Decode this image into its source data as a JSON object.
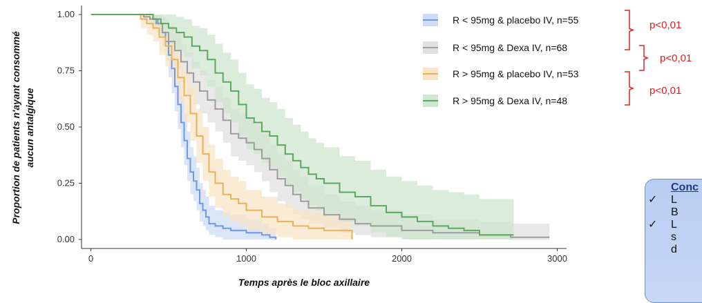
{
  "chart_data": {
    "type": "line",
    "title": "",
    "xlabel": "Temps après le bloc axillaire",
    "ylabel": [
      "Proportion de patients n'ayant consommé",
      "aucun antalgique"
    ],
    "xlim": [
      -60,
      3060
    ],
    "ylim": [
      -0.04,
      1.04
    ],
    "x_ticks": [
      0,
      1000,
      2000,
      3000
    ],
    "x_tick_labels": [
      "0",
      "1000",
      "2000",
      "3000"
    ],
    "y_ticks": [
      0,
      0.25,
      0.5,
      0.75,
      1.0
    ],
    "y_tick_labels": [
      "0.00",
      "0.25",
      "0.50",
      "0.75",
      "1.00"
    ],
    "grid": false,
    "legend_position": "top-right",
    "series": [
      {
        "name": "R < 95mg & placebo IV, n=55",
        "color": "#6f98e6",
        "band_color": "#cddcf6",
        "x": [
          0,
          340,
          400,
          430,
          460,
          480,
          500,
          520,
          540,
          560,
          580,
          600,
          620,
          640,
          660,
          680,
          700,
          720,
          740,
          760,
          800,
          850,
          900,
          1000,
          1100,
          1150,
          1190
        ],
        "y": [
          1.0,
          1.0,
          0.98,
          0.96,
          0.92,
          0.88,
          0.82,
          0.76,
          0.68,
          0.6,
          0.52,
          0.44,
          0.36,
          0.3,
          0.26,
          0.22,
          0.16,
          0.13,
          0.1,
          0.07,
          0.06,
          0.05,
          0.04,
          0.03,
          0.02,
          0.01,
          0.0
        ],
        "upper": [
          1.0,
          1.0,
          1.0,
          1.0,
          0.99,
          0.96,
          0.92,
          0.87,
          0.8,
          0.72,
          0.64,
          0.56,
          0.48,
          0.41,
          0.37,
          0.32,
          0.25,
          0.22,
          0.19,
          0.15,
          0.13,
          0.12,
          0.11,
          0.09,
          0.07,
          0.05,
          0.03
        ],
        "lower": [
          1.0,
          1.0,
          0.94,
          0.91,
          0.86,
          0.8,
          0.72,
          0.65,
          0.57,
          0.49,
          0.41,
          0.33,
          0.26,
          0.2,
          0.17,
          0.13,
          0.08,
          0.06,
          0.04,
          0.02,
          0.01,
          0.0,
          0.0,
          0.0,
          0.0,
          0.0,
          0.0
        ]
      },
      {
        "name": "R < 95mg & Dexa IV, n=68",
        "color": "#9c9c9c",
        "band_color": "#e0e0e0",
        "x": [
          0,
          300,
          340,
          380,
          420,
          460,
          500,
          540,
          580,
          620,
          660,
          700,
          750,
          800,
          850,
          900,
          950,
          1000,
          1050,
          1100,
          1150,
          1200,
          1250,
          1300,
          1350,
          1400,
          1500,
          1600,
          1700,
          1800,
          2000,
          2200,
          2500,
          2700,
          2950
        ],
        "y": [
          1.0,
          1.0,
          0.99,
          0.98,
          0.96,
          0.92,
          0.88,
          0.84,
          0.79,
          0.74,
          0.7,
          0.66,
          0.62,
          0.58,
          0.53,
          0.47,
          0.45,
          0.43,
          0.4,
          0.36,
          0.31,
          0.27,
          0.24,
          0.2,
          0.17,
          0.14,
          0.11,
          0.09,
          0.07,
          0.06,
          0.04,
          0.03,
          0.02,
          0.01,
          0.01
        ],
        "upper": [
          1.0,
          1.0,
          1.0,
          1.0,
          1.0,
          0.98,
          0.95,
          0.92,
          0.87,
          0.83,
          0.79,
          0.75,
          0.71,
          0.68,
          0.63,
          0.58,
          0.56,
          0.54,
          0.51,
          0.47,
          0.42,
          0.38,
          0.35,
          0.31,
          0.28,
          0.24,
          0.2,
          0.17,
          0.15,
          0.13,
          0.11,
          0.09,
          0.08,
          0.07,
          0.07
        ],
        "lower": [
          1.0,
          1.0,
          0.97,
          0.95,
          0.92,
          0.86,
          0.81,
          0.76,
          0.7,
          0.64,
          0.6,
          0.56,
          0.52,
          0.48,
          0.43,
          0.37,
          0.35,
          0.33,
          0.3,
          0.26,
          0.21,
          0.17,
          0.14,
          0.11,
          0.09,
          0.07,
          0.05,
          0.03,
          0.02,
          0.01,
          0.0,
          0.0,
          0.0,
          0.0,
          0.0
        ]
      },
      {
        "name": "R > 95mg & placebo IV, n=53",
        "color": "#e8b25b",
        "band_color": "#f7e4c6",
        "x": [
          0,
          280,
          320,
          360,
          400,
          440,
          480,
          520,
          560,
          600,
          640,
          680,
          720,
          760,
          800,
          850,
          900,
          950,
          1000,
          1100,
          1200,
          1300,
          1400,
          1500,
          1600,
          1680
        ],
        "y": [
          1.0,
          1.0,
          0.98,
          0.96,
          0.94,
          0.9,
          0.86,
          0.8,
          0.72,
          0.64,
          0.56,
          0.46,
          0.38,
          0.3,
          0.25,
          0.2,
          0.18,
          0.16,
          0.13,
          0.1,
          0.08,
          0.06,
          0.05,
          0.04,
          0.04,
          0.0
        ],
        "upper": [
          1.0,
          1.0,
          1.0,
          1.0,
          1.0,
          0.97,
          0.94,
          0.89,
          0.82,
          0.75,
          0.68,
          0.58,
          0.5,
          0.42,
          0.36,
          0.31,
          0.28,
          0.26,
          0.22,
          0.19,
          0.16,
          0.13,
          0.12,
          0.11,
          0.1,
          0.06
        ],
        "lower": [
          1.0,
          1.0,
          0.94,
          0.91,
          0.88,
          0.82,
          0.77,
          0.7,
          0.61,
          0.52,
          0.44,
          0.34,
          0.26,
          0.19,
          0.14,
          0.1,
          0.08,
          0.06,
          0.04,
          0.02,
          0.01,
          0.0,
          0.0,
          0.0,
          0.0,
          0.0
        ]
      },
      {
        "name": "R > 95mg & Dexa IV, n=48",
        "color": "#5aa85e",
        "band_color": "#cfe6cf",
        "x": [
          0,
          350,
          400,
          450,
          500,
          550,
          600,
          650,
          700,
          750,
          800,
          850,
          900,
          950,
          1000,
          1050,
          1100,
          1150,
          1200,
          1250,
          1300,
          1350,
          1400,
          1450,
          1500,
          1600,
          1700,
          1800,
          1900,
          2000,
          2100,
          2200,
          2300,
          2400,
          2500,
          2720
        ],
        "y": [
          1.0,
          1.0,
          0.98,
          0.96,
          0.94,
          0.92,
          0.9,
          0.86,
          0.84,
          0.8,
          0.74,
          0.7,
          0.66,
          0.6,
          0.54,
          0.52,
          0.48,
          0.46,
          0.42,
          0.38,
          0.35,
          0.32,
          0.29,
          0.27,
          0.25,
          0.21,
          0.19,
          0.15,
          0.12,
          0.1,
          0.08,
          0.06,
          0.05,
          0.04,
          0.02,
          0.02
        ],
        "upper": [
          1.0,
          1.0,
          1.0,
          1.0,
          1.0,
          0.99,
          0.98,
          0.95,
          0.94,
          0.91,
          0.87,
          0.83,
          0.8,
          0.74,
          0.69,
          0.67,
          0.63,
          0.61,
          0.58,
          0.54,
          0.51,
          0.48,
          0.45,
          0.43,
          0.41,
          0.37,
          0.35,
          0.31,
          0.28,
          0.26,
          0.24,
          0.22,
          0.21,
          0.2,
          0.18,
          0.18
        ],
        "lower": [
          1.0,
          1.0,
          0.95,
          0.91,
          0.87,
          0.84,
          0.81,
          0.76,
          0.73,
          0.68,
          0.61,
          0.56,
          0.52,
          0.46,
          0.4,
          0.38,
          0.34,
          0.32,
          0.28,
          0.24,
          0.21,
          0.18,
          0.15,
          0.13,
          0.11,
          0.08,
          0.06,
          0.03,
          0.01,
          0.0,
          0.0,
          0.0,
          0.0,
          0.0,
          0.0,
          0.0
        ]
      }
    ],
    "annotations": [
      {
        "text": "p<0,01",
        "between": [
          0,
          1
        ],
        "color": "#e02020"
      },
      {
        "text": "p<0,01",
        "between": [
          1,
          2
        ],
        "color": "#e02020"
      },
      {
        "text": "p<0,01",
        "between": [
          2,
          3
        ],
        "color": "#e02020"
      }
    ]
  },
  "conclusion": {
    "title": "Conc",
    "items": [
      {
        "check": "✓",
        "lines": [
          "L",
          "B"
        ]
      },
      {
        "check": "✓",
        "lines": [
          "L",
          "s",
          "d"
        ]
      }
    ]
  }
}
